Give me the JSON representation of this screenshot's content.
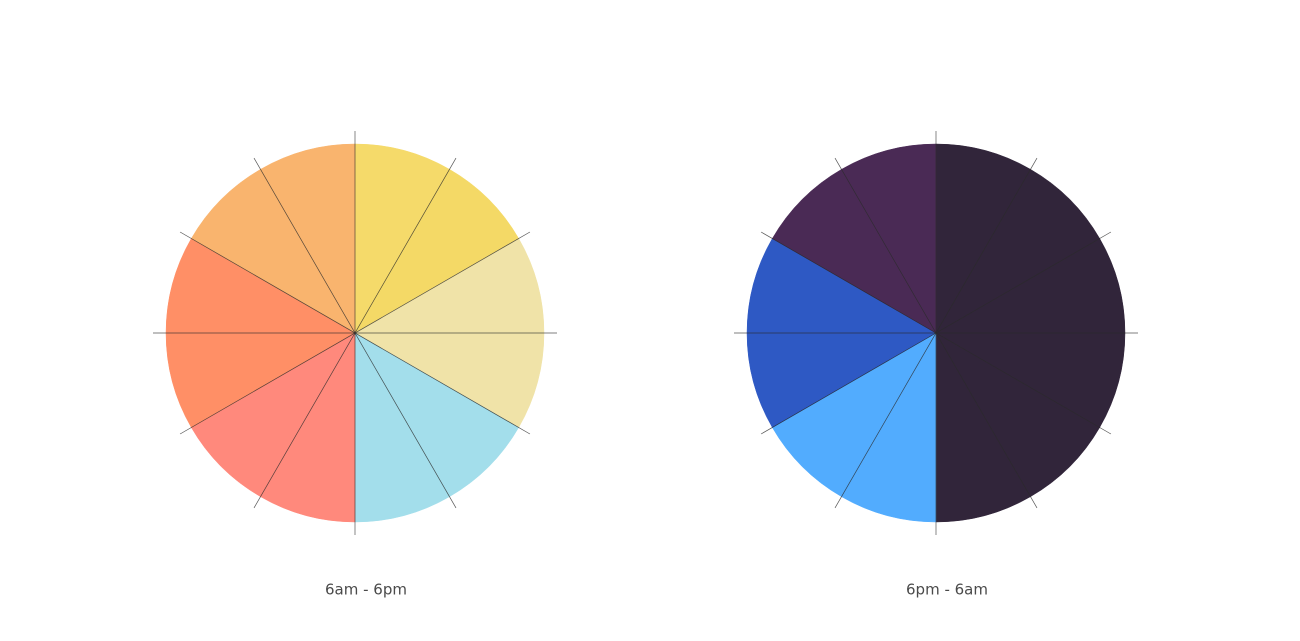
{
  "clocks": [
    {
      "label": "6am - 6pm",
      "colors": [
        "#f5da6a",
        "#f4d966",
        "#f0e3a8",
        "#f0e3a8",
        "#a3deeb",
        "#a3deeb",
        "#ff897c",
        "#ff897c",
        "#ff8f66",
        "#ff8f66",
        "#f9b46e",
        "#f9b46e"
      ]
    },
    {
      "label": "6pm - 6am",
      "colors": [
        "#31253a",
        "#31253a",
        "#31253a",
        "#31253a",
        "#31253a",
        "#31253a",
        "#52acfe",
        "#52acfe",
        "#2e59c4",
        "#2e59c4",
        "#4a2a55",
        "#4a2a55"
      ]
    }
  ]
}
